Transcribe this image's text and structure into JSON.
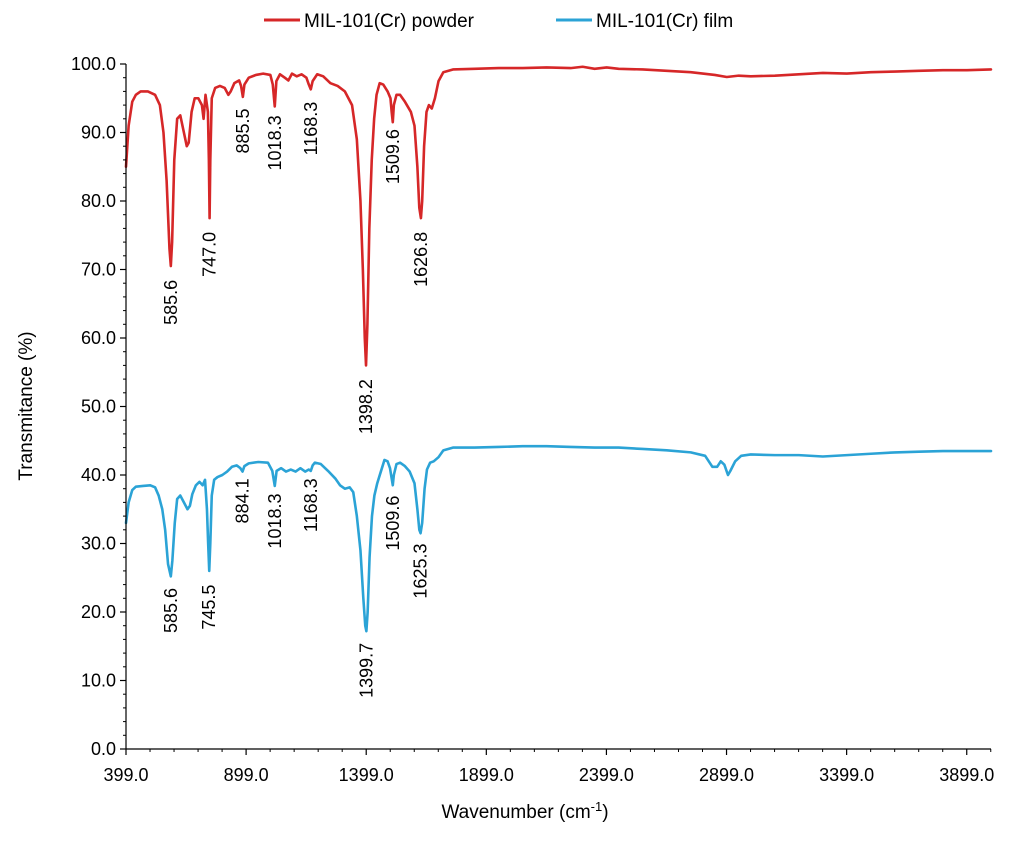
{
  "chart_data": {
    "type": "line",
    "title": "",
    "xlabel": "Wavenumber (cm",
    "xlabel_sup": "-1",
    "xlabel_suffix": ")",
    "ylabel": "Transmitance (%)",
    "xlim": [
      399,
      4000
    ],
    "ylim": [
      0,
      100
    ],
    "x_ticks": [
      399,
      899,
      1399,
      1899,
      2399,
      2899,
      3399,
      3899
    ],
    "x_tick_labels": [
      "399.0",
      "899.0",
      "1399.0",
      "1899.0",
      "2399.0",
      "2899.0",
      "3399.0",
      "3899.0"
    ],
    "y_ticks": [
      0,
      10,
      20,
      30,
      40,
      50,
      60,
      70,
      80,
      90,
      100
    ],
    "y_tick_labels": [
      "0.0",
      "10.0",
      "20.0",
      "30.0",
      "40.0",
      "50.0",
      "60.0",
      "70.0",
      "80.0",
      "90.0",
      "100.0"
    ],
    "grid": false,
    "legend_position": "top-center",
    "series": [
      {
        "name": "MIL-101(Cr) powder",
        "color": "#d62728",
        "points": [
          [
            399,
            85
          ],
          [
            410,
            91
          ],
          [
            425,
            94.5
          ],
          [
            440,
            95.5
          ],
          [
            460,
            96
          ],
          [
            490,
            96
          ],
          [
            520,
            95.5
          ],
          [
            540,
            94
          ],
          [
            555,
            90
          ],
          [
            568,
            83
          ],
          [
            580,
            73
          ],
          [
            585.6,
            70.5
          ],
          [
            591,
            74
          ],
          [
            600,
            86
          ],
          [
            612,
            92
          ],
          [
            625,
            92.5
          ],
          [
            640,
            90
          ],
          [
            652,
            88
          ],
          [
            660,
            88.5
          ],
          [
            672,
            93
          ],
          [
            685,
            95
          ],
          [
            700,
            95
          ],
          [
            715,
            94
          ],
          [
            722,
            92
          ],
          [
            730,
            95.5
          ],
          [
            740,
            93
          ],
          [
            744,
            86
          ],
          [
            747,
            77.5
          ],
          [
            750,
            86
          ],
          [
            756,
            95
          ],
          [
            770,
            96.5
          ],
          [
            790,
            96.8
          ],
          [
            810,
            96.5
          ],
          [
            825,
            95.5
          ],
          [
            835,
            96
          ],
          [
            850,
            97.2
          ],
          [
            870,
            97.6
          ],
          [
            878,
            96.8
          ],
          [
            885.5,
            95.2
          ],
          [
            892,
            97
          ],
          [
            910,
            98
          ],
          [
            940,
            98.4
          ],
          [
            970,
            98.6
          ],
          [
            1000,
            98.4
          ],
          [
            1010,
            97
          ],
          [
            1018.3,
            93.8
          ],
          [
            1025,
            97.5
          ],
          [
            1040,
            98.5
          ],
          [
            1060,
            98
          ],
          [
            1075,
            97.6
          ],
          [
            1090,
            98.6
          ],
          [
            1110,
            98.2
          ],
          [
            1130,
            98.5
          ],
          [
            1150,
            98
          ],
          [
            1160,
            97
          ],
          [
            1168.3,
            96.3
          ],
          [
            1176,
            97.5
          ],
          [
            1195,
            98.5
          ],
          [
            1220,
            98.2
          ],
          [
            1250,
            97.2
          ],
          [
            1280,
            96.8
          ],
          [
            1310,
            96
          ],
          [
            1340,
            94
          ],
          [
            1360,
            89
          ],
          [
            1375,
            80
          ],
          [
            1385,
            70
          ],
          [
            1393,
            60
          ],
          [
            1398.2,
            56
          ],
          [
            1404,
            62
          ],
          [
            1412,
            76
          ],
          [
            1422,
            86
          ],
          [
            1432,
            92
          ],
          [
            1442,
            95.5
          ],
          [
            1455,
            97.2
          ],
          [
            1470,
            97
          ],
          [
            1488,
            96
          ],
          [
            1500,
            95
          ],
          [
            1505,
            93
          ],
          [
            1509.6,
            91.5
          ],
          [
            1514,
            94
          ],
          [
            1525,
            95.5
          ],
          [
            1540,
            95.5
          ],
          [
            1560,
            94.5
          ],
          [
            1585,
            93
          ],
          [
            1600,
            91
          ],
          [
            1612,
            85
          ],
          [
            1620,
            79
          ],
          [
            1626.8,
            77.5
          ],
          [
            1632,
            80
          ],
          [
            1640,
            88
          ],
          [
            1650,
            93
          ],
          [
            1660,
            94
          ],
          [
            1672,
            93.5
          ],
          [
            1685,
            95
          ],
          [
            1700,
            97.5
          ],
          [
            1720,
            98.8
          ],
          [
            1760,
            99.2
          ],
          [
            1850,
            99.3
          ],
          [
            1950,
            99.4
          ],
          [
            2050,
            99.4
          ],
          [
            2150,
            99.5
          ],
          [
            2250,
            99.4
          ],
          [
            2300,
            99.6
          ],
          [
            2350,
            99.3
          ],
          [
            2400,
            99.5
          ],
          [
            2450,
            99.3
          ],
          [
            2550,
            99.2
          ],
          [
            2650,
            99
          ],
          [
            2750,
            98.8
          ],
          [
            2850,
            98.4
          ],
          [
            2900,
            98.1
          ],
          [
            2950,
            98.3
          ],
          [
            3000,
            98.2
          ],
          [
            3100,
            98.3
          ],
          [
            3200,
            98.5
          ],
          [
            3300,
            98.7
          ],
          [
            3400,
            98.6
          ],
          [
            3500,
            98.8
          ],
          [
            3600,
            98.9
          ],
          [
            3700,
            99
          ],
          [
            3800,
            99.1
          ],
          [
            3900,
            99.1
          ],
          [
            4000,
            99.2
          ]
        ]
      },
      {
        "name": "MIL-101(Cr) film",
        "color": "#2ba3d6",
        "points": [
          [
            399,
            33
          ],
          [
            410,
            36
          ],
          [
            425,
            37.8
          ],
          [
            440,
            38.3
          ],
          [
            470,
            38.4
          ],
          [
            500,
            38.5
          ],
          [
            520,
            38.2
          ],
          [
            535,
            37
          ],
          [
            550,
            35
          ],
          [
            562,
            32
          ],
          [
            574,
            27
          ],
          [
            585.6,
            25.2
          ],
          [
            592,
            27.5
          ],
          [
            602,
            33
          ],
          [
            612,
            36.5
          ],
          [
            625,
            37
          ],
          [
            640,
            36
          ],
          [
            655,
            35
          ],
          [
            665,
            35.5
          ],
          [
            675,
            37.2
          ],
          [
            690,
            38.5
          ],
          [
            705,
            39
          ],
          [
            718,
            38.5
          ],
          [
            728,
            39.3
          ],
          [
            736,
            35
          ],
          [
            741,
            30
          ],
          [
            745.5,
            26
          ],
          [
            750,
            30
          ],
          [
            756,
            37
          ],
          [
            766,
            39.3
          ],
          [
            780,
            39.7
          ],
          [
            800,
            40
          ],
          [
            820,
            40.5
          ],
          [
            840,
            41.2
          ],
          [
            860,
            41.4
          ],
          [
            875,
            41
          ],
          [
            884.1,
            40.5
          ],
          [
            892,
            41.3
          ],
          [
            910,
            41.7
          ],
          [
            950,
            41.9
          ],
          [
            990,
            41.8
          ],
          [
            1008,
            40.6
          ],
          [
            1018.3,
            38.4
          ],
          [
            1026,
            40.6
          ],
          [
            1045,
            41
          ],
          [
            1065,
            40.5
          ],
          [
            1085,
            40.8
          ],
          [
            1105,
            40.5
          ],
          [
            1125,
            41
          ],
          [
            1145,
            40.5
          ],
          [
            1160,
            40.8
          ],
          [
            1168.3,
            40.6
          ],
          [
            1176,
            41.4
          ],
          [
            1185,
            41.8
          ],
          [
            1210,
            41.6
          ],
          [
            1240,
            40.6
          ],
          [
            1270,
            39.5
          ],
          [
            1290,
            38.5
          ],
          [
            1310,
            38
          ],
          [
            1330,
            38.2
          ],
          [
            1345,
            37.5
          ],
          [
            1360,
            34
          ],
          [
            1375,
            29
          ],
          [
            1387,
            22
          ],
          [
            1395,
            18
          ],
          [
            1399.7,
            17.2
          ],
          [
            1405,
            20
          ],
          [
            1413,
            28
          ],
          [
            1423,
            34
          ],
          [
            1433,
            37
          ],
          [
            1445,
            38.8
          ],
          [
            1460,
            40.5
          ],
          [
            1475,
            42.2
          ],
          [
            1488,
            42
          ],
          [
            1498,
            41
          ],
          [
            1505,
            39.5
          ],
          [
            1509.6,
            38.5
          ],
          [
            1514,
            40
          ],
          [
            1525,
            41.6
          ],
          [
            1540,
            41.8
          ],
          [
            1560,
            41.3
          ],
          [
            1580,
            40.5
          ],
          [
            1600,
            38.8
          ],
          [
            1612,
            35
          ],
          [
            1620,
            32
          ],
          [
            1625.3,
            31.5
          ],
          [
            1632,
            33
          ],
          [
            1642,
            38
          ],
          [
            1652,
            40.8
          ],
          [
            1665,
            41.8
          ],
          [
            1680,
            42
          ],
          [
            1700,
            42.6
          ],
          [
            1720,
            43.6
          ],
          [
            1760,
            44
          ],
          [
            1850,
            44
          ],
          [
            1950,
            44.1
          ],
          [
            2050,
            44.2
          ],
          [
            2150,
            44.2
          ],
          [
            2250,
            44.1
          ],
          [
            2350,
            44
          ],
          [
            2450,
            44
          ],
          [
            2550,
            43.8
          ],
          [
            2650,
            43.6
          ],
          [
            2750,
            43.3
          ],
          [
            2810,
            42.8
          ],
          [
            2840,
            41.2
          ],
          [
            2860,
            41.2
          ],
          [
            2875,
            42
          ],
          [
            2890,
            41.5
          ],
          [
            2905,
            40
          ],
          [
            2915,
            40.6
          ],
          [
            2935,
            42
          ],
          [
            2960,
            42.8
          ],
          [
            3000,
            43
          ],
          [
            3100,
            42.9
          ],
          [
            3200,
            42.9
          ],
          [
            3300,
            42.7
          ],
          [
            3400,
            42.9
          ],
          [
            3500,
            43.1
          ],
          [
            3600,
            43.3
          ],
          [
            3700,
            43.4
          ],
          [
            3800,
            43.5
          ],
          [
            3900,
            43.5
          ],
          [
            4000,
            43.5
          ]
        ]
      }
    ],
    "annotations": [
      {
        "text": "585.6",
        "x": 585.6,
        "y": 68.5
      },
      {
        "text": "747.0",
        "x": 747.0,
        "y": 75.5
      },
      {
        "text": "885.5",
        "x": 885.5,
        "y": 93.5
      },
      {
        "text": "1018.3",
        "x": 1018.3,
        "y": 92.5
      },
      {
        "text": "1168.3",
        "x": 1168.3,
        "y": 94.5
      },
      {
        "text": "1398.2",
        "x": 1398.2,
        "y": 54
      },
      {
        "text": "1509.6",
        "x": 1509.6,
        "y": 90.5
      },
      {
        "text": "1626.8",
        "x": 1626.8,
        "y": 75.5
      },
      {
        "text": "585.6",
        "x": 585.6,
        "y": 23.5
      },
      {
        "text": "745.5",
        "x": 745.5,
        "y": 24
      },
      {
        "text": "884.1",
        "x": 884.1,
        "y": 39.5
      },
      {
        "text": "1018.3",
        "x": 1018.3,
        "y": 37.3
      },
      {
        "text": "1168.3",
        "x": 1168.3,
        "y": 39.5
      },
      {
        "text": "1399.7",
        "x": 1399.7,
        "y": 15.5
      },
      {
        "text": "1509.6",
        "x": 1509.6,
        "y": 37
      },
      {
        "text": "1625.3",
        "x": 1625.3,
        "y": 30
      }
    ]
  }
}
